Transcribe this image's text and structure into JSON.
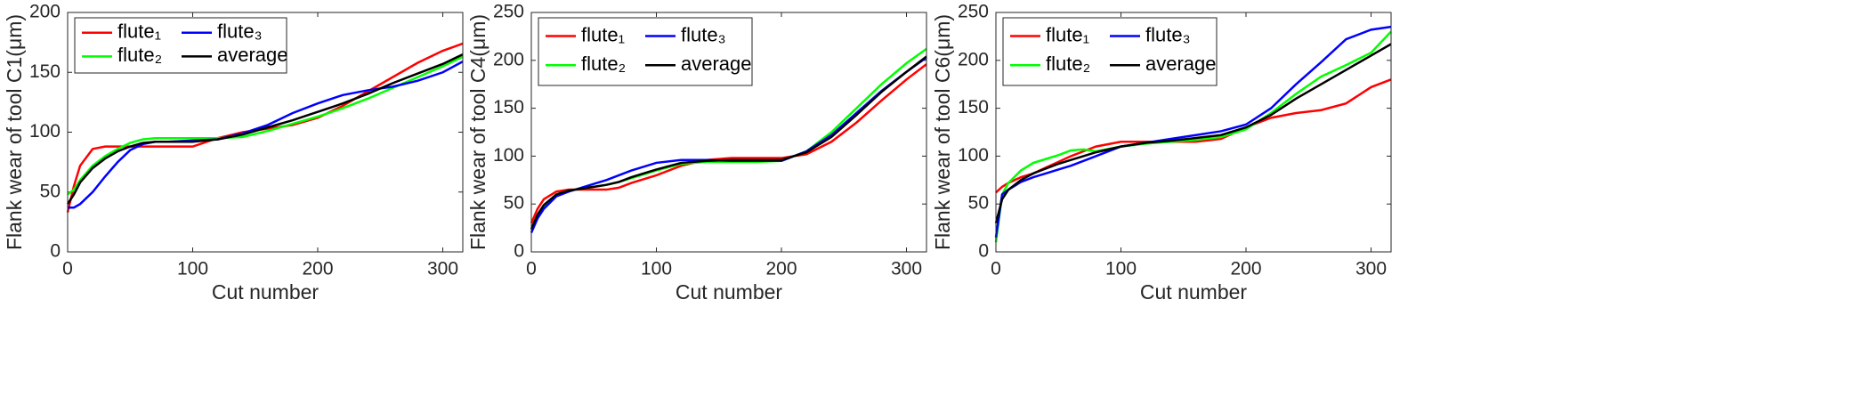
{
  "chart_data": [
    {
      "type": "line",
      "xlabel": "Cut number",
      "ylabel": "Flank wear of tool C1(μm)",
      "x": [
        0,
        5,
        10,
        20,
        30,
        40,
        50,
        60,
        70,
        80,
        100,
        120,
        140,
        160,
        180,
        200,
        220,
        240,
        260,
        280,
        300,
        316
      ],
      "xlim": [
        0,
        316
      ],
      "xticks": [
        0,
        100,
        200,
        300
      ],
      "ylim": [
        0,
        200
      ],
      "yticks": [
        0,
        50,
        100,
        150,
        200
      ],
      "series": [
        {
          "name": "flute₁",
          "color": "#ff0000",
          "values": [
            33,
            55,
            72,
            86,
            88,
            88,
            88,
            88,
            88,
            88,
            88,
            95,
            100,
            103,
            106,
            112,
            122,
            134,
            146,
            158,
            168,
            174
          ]
        },
        {
          "name": "flute₂",
          "color": "#00ff00",
          "values": [
            48,
            52,
            60,
            72,
            80,
            86,
            91,
            94,
            95,
            95,
            95,
            95,
            96,
            101,
            107,
            113,
            120,
            128,
            137,
            146,
            155,
            163
          ]
        },
        {
          "name": "flute₃",
          "color": "#0000ff",
          "values": [
            37,
            37,
            40,
            50,
            63,
            75,
            85,
            90,
            92,
            92,
            93,
            94,
            99,
            106,
            116,
            124,
            131,
            135,
            138,
            143,
            150,
            159
          ]
        },
        {
          "name": "average",
          "color": "#000000",
          "values": [
            40,
            48,
            58,
            70,
            78,
            84,
            88,
            91,
            92,
            92,
            92,
            94,
            98,
            104,
            110,
            117,
            124,
            132,
            141,
            149,
            157,
            165
          ]
        }
      ]
    },
    {
      "type": "line",
      "xlabel": "Cut number",
      "ylabel": "Flank wear of tool C4(μm)",
      "x": [
        0,
        5,
        10,
        20,
        30,
        40,
        50,
        60,
        70,
        80,
        100,
        120,
        140,
        160,
        180,
        200,
        220,
        240,
        260,
        280,
        300,
        316
      ],
      "xlim": [
        0,
        316
      ],
      "xticks": [
        0,
        100,
        200,
        300
      ],
      "ylim": [
        0,
        250
      ],
      "yticks": [
        0,
        50,
        100,
        150,
        200,
        250
      ],
      "series": [
        {
          "name": "flute₁",
          "color": "#ff0000",
          "values": [
            30,
            45,
            55,
            63,
            65,
            65,
            65,
            65,
            67,
            72,
            80,
            90,
            96,
            98,
            98,
            98,
            102,
            115,
            135,
            158,
            180,
            196
          ]
        },
        {
          "name": "flute₂",
          "color": "#00ff00",
          "values": [
            23,
            38,
            48,
            60,
            64,
            66,
            68,
            70,
            73,
            77,
            85,
            92,
            94,
            94,
            94,
            95,
            105,
            125,
            150,
            175,
            197,
            212
          ]
        },
        {
          "name": "flute₃",
          "color": "#0000ff",
          "values": [
            20,
            35,
            45,
            58,
            63,
            67,
            71,
            75,
            80,
            85,
            93,
            96,
            96,
            95,
            95,
            95,
            105,
            122,
            145,
            168,
            188,
            203
          ]
        },
        {
          "name": "average",
          "color": "#000000",
          "values": [
            24,
            39,
            49,
            60,
            64,
            66,
            68,
            70,
            73,
            78,
            86,
            93,
            95,
            96,
            96,
            96,
            104,
            120,
            143,
            167,
            188,
            204
          ]
        }
      ]
    },
    {
      "type": "line",
      "xlabel": "Cut number",
      "ylabel": "Flank wear of tool C6(μm)",
      "x": [
        0,
        5,
        10,
        20,
        30,
        40,
        50,
        60,
        70,
        80,
        100,
        120,
        140,
        160,
        180,
        200,
        220,
        240,
        260,
        280,
        300,
        316
      ],
      "xlim": [
        0,
        316
      ],
      "xticks": [
        0,
        100,
        200,
        300
      ],
      "ylim": [
        0,
        250
      ],
      "yticks": [
        0,
        50,
        100,
        150,
        200,
        250
      ],
      "series": [
        {
          "name": "flute₁",
          "color": "#ff0000",
          "values": [
            62,
            68,
            72,
            78,
            82,
            88,
            94,
            100,
            105,
            110,
            115,
            115,
            115,
            115,
            118,
            130,
            140,
            145,
            148,
            155,
            172,
            180
          ]
        },
        {
          "name": "flute₂",
          "color": "#00ff00",
          "values": [
            10,
            60,
            72,
            85,
            93,
            97,
            101,
            106,
            107,
            105,
            110,
            113,
            115,
            117,
            120,
            128,
            145,
            165,
            183,
            195,
            208,
            230
          ]
        },
        {
          "name": "flute₃",
          "color": "#0000ff",
          "values": [
            15,
            60,
            65,
            73,
            78,
            82,
            86,
            90,
            95,
            100,
            110,
            114,
            118,
            122,
            126,
            133,
            150,
            175,
            198,
            222,
            232,
            235
          ]
        },
        {
          "name": "average",
          "color": "#000000",
          "values": [
            30,
            55,
            65,
            75,
            82,
            87,
            92,
            96,
            100,
            104,
            110,
            114,
            116,
            119,
            122,
            130,
            143,
            160,
            175,
            190,
            205,
            217
          ]
        }
      ]
    }
  ]
}
